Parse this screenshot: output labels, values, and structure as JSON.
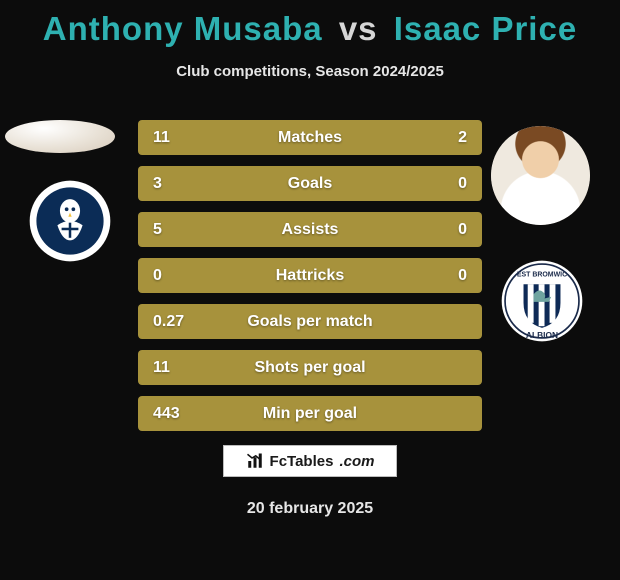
{
  "background_color": "#0c0c0c",
  "text_color_light": "#e6e6e6",
  "title": {
    "player1": "Anthony Musaba",
    "vs": "vs",
    "player2": "Isaac Price",
    "fontsize": 33,
    "color_p1": "#2eb1b1",
    "color_vs": "#d6d6d6",
    "color_p2": "#2eb1b1"
  },
  "subtitle": {
    "text": "Club competitions, Season 2024/2025",
    "fontsize": 15,
    "color": "#e6e6e6"
  },
  "bars": {
    "bar_color": "#a7923c",
    "text_color": "#ffffff",
    "fontsize": 16,
    "rows": [
      {
        "left": "11",
        "label": "Matches",
        "right": "2"
      },
      {
        "left": "3",
        "label": "Goals",
        "right": "0"
      },
      {
        "left": "5",
        "label": "Assists",
        "right": "0"
      },
      {
        "left": "0",
        "label": "Hattricks",
        "right": "0"
      },
      {
        "left": "0.27",
        "label": "Goals per match",
        "right": ""
      },
      {
        "left": "11",
        "label": "Shots per goal",
        "right": ""
      },
      {
        "left": "443",
        "label": "Min per goal",
        "right": ""
      }
    ]
  },
  "clubs": {
    "c1": {
      "name": "sheffield-wednesday-crest",
      "ring": "#ffffff",
      "body": "#0b2c56",
      "accent": "#f3c13a"
    },
    "c2": {
      "name": "west-brom-crest",
      "ring": "#ffffff",
      "body": "#0e2a56",
      "stripe": "#ffffff",
      "text": "#1a2a4a"
    }
  },
  "logo": {
    "icon": "bar-chart-icon",
    "text_main": "FcTables",
    "text_dom": ".com",
    "fontsize": 15,
    "border_color": "#bdbdbd"
  },
  "date": {
    "text": "20 february 2025",
    "fontsize": 16,
    "color": "#e6e6e6"
  }
}
